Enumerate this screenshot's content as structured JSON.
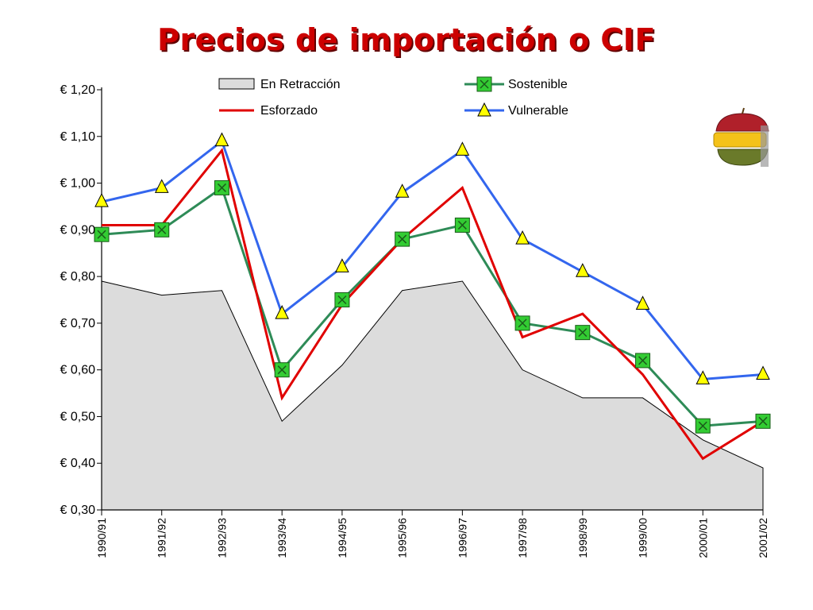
{
  "title": "Precios de importación o CIF",
  "icon": "fruit-stack-icon",
  "colors": {
    "title": "#cc0000",
    "area_fill": "#dcdcdc",
    "sostenible": "#2e8b57",
    "sostenible_marker": "#33cc33",
    "esforzado": "#e00000",
    "vulnerable": "#3366ee",
    "vulnerable_marker": "#ffff00"
  },
  "chart_data": {
    "type": "line",
    "title": "Precios de importación o CIF",
    "categories": [
      "1990/91",
      "1991/92",
      "1992/93",
      "1993/94",
      "1994/95",
      "1995/96",
      "1996/97",
      "1997/98",
      "1998/99",
      "1999/00",
      "2000/01",
      "2001/02"
    ],
    "ylim": [
      0.3,
      1.2
    ],
    "yticks": [
      "€ 1,20",
      "€ 1,10",
      "€ 1,00",
      "€ 0,90",
      "€ 0,80",
      "€ 0,70",
      "€ 0,60",
      "€ 0,50",
      "€ 0,40",
      "€ 0,30"
    ],
    "grid": false,
    "legend_position": "top",
    "series": [
      {
        "name": "En Retracción",
        "kind": "area",
        "values": [
          0.79,
          0.76,
          0.77,
          0.49,
          0.61,
          0.77,
          0.79,
          0.6,
          0.54,
          0.54,
          0.45,
          0.39
        ]
      },
      {
        "name": "Sostenible",
        "kind": "line-square",
        "values": [
          0.89,
          0.9,
          0.99,
          0.6,
          0.75,
          0.88,
          0.91,
          0.7,
          0.68,
          0.62,
          0.48,
          0.49
        ]
      },
      {
        "name": "Esforzado",
        "kind": "line",
        "values": [
          0.91,
          0.91,
          1.07,
          0.54,
          0.74,
          0.88,
          0.99,
          0.67,
          0.72,
          0.59,
          0.41,
          0.49
        ]
      },
      {
        "name": "Vulnerable",
        "kind": "line-triangle",
        "values": [
          0.96,
          0.99,
          1.09,
          0.72,
          0.82,
          0.98,
          1.07,
          0.88,
          0.81,
          0.74,
          0.58,
          0.59
        ]
      }
    ]
  }
}
